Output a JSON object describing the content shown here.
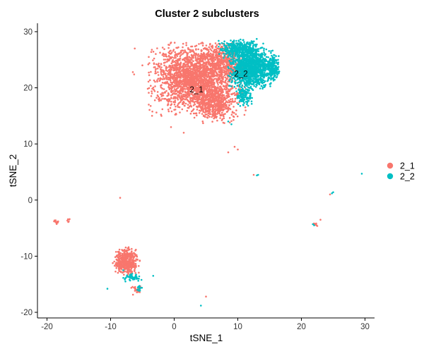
{
  "chart_data": {
    "type": "scatter",
    "title": "Cluster 2  subclusters",
    "xlabel": "tSNE_1",
    "ylabel": "tSNE_2",
    "xlim": [
      -21.5,
      31.5
    ],
    "ylim": [
      -21,
      31.5
    ],
    "x_ticks": [
      -20,
      -10,
      0,
      10,
      20,
      30
    ],
    "y_ticks": [
      -20,
      -10,
      0,
      10,
      20,
      30
    ],
    "grid": false,
    "legend": "right",
    "series": [
      {
        "name": "2_1",
        "color": "#F8766D",
        "groups": [
          {
            "kind": "ellipse",
            "center": [
              3.5,
              21.5
            ],
            "spread": [
              6.5,
              5.5
            ],
            "rotation": 0,
            "n": 2300
          },
          {
            "kind": "ellipse",
            "center": [
              6.5,
              17.0
            ],
            "spread": [
              3.0,
              2.8
            ],
            "rotation": 0,
            "n": 400
          },
          {
            "kind": "ellipse",
            "center": [
              7.5,
              25.0
            ],
            "spread": [
              3.5,
              2.5
            ],
            "rotation": 0,
            "n": 400
          },
          {
            "kind": "ellipse",
            "center": [
              -7.5,
              -11.0
            ],
            "spread": [
              1.8,
              2.3
            ],
            "rotation": 0,
            "n": 420
          },
          {
            "kind": "ellipse",
            "center": [
              -6.0,
              -16.0
            ],
            "spread": [
              0.8,
              0.8
            ],
            "rotation": 0,
            "n": 30
          },
          {
            "kind": "ellipse",
            "center": [
              -18.5,
              -3.8
            ],
            "spread": [
              0.4,
              0.4
            ],
            "rotation": 0,
            "n": 14
          },
          {
            "kind": "ellipse",
            "center": [
              -16.5,
              -3.6
            ],
            "spread": [
              0.3,
              0.3
            ],
            "rotation": 0,
            "n": 6
          },
          {
            "kind": "ellipse",
            "center": [
              22.3,
              -4.3
            ],
            "spread": [
              0.4,
              0.3
            ],
            "rotation": 0,
            "n": 10
          }
        ],
        "points": [
          [
            -6.2,
            27.0
          ],
          [
            -6.5,
            22.8
          ],
          [
            -6.3,
            22.4
          ],
          [
            -3.5,
            19.0
          ],
          [
            -8.5,
            0.4
          ],
          [
            5.0,
            -17.2
          ],
          [
            -0.5,
            13.0
          ],
          [
            1.5,
            12.0
          ],
          [
            9.5,
            9.5
          ],
          [
            8.5,
            8.5
          ],
          [
            10.0,
            9.0
          ],
          [
            -5.0,
            24.0
          ],
          [
            -4.0,
            25.5
          ],
          [
            -4.0,
            17.0
          ],
          [
            -2.0,
            15.0
          ],
          [
            23.0,
            -3.5
          ],
          [
            12.5,
            4.5
          ],
          [
            24.5,
            1.0
          ]
        ]
      },
      {
        "name": "2_2",
        "color": "#00BFC4",
        "groups": [
          {
            "kind": "ellipse",
            "center": [
              12.0,
              23.5
            ],
            "spread": [
              3.0,
              3.2
            ],
            "rotation": 0,
            "n": 1250
          },
          {
            "kind": "ellipse",
            "center": [
              10.5,
              27.0
            ],
            "spread": [
              3.0,
              1.5
            ],
            "rotation": 0,
            "n": 350
          },
          {
            "kind": "ellipse",
            "center": [
              15.5,
              23.5
            ],
            "spread": [
              1.0,
              2.0
            ],
            "rotation": 0,
            "n": 200
          },
          {
            "kind": "ellipse",
            "center": [
              11.0,
              18.5
            ],
            "spread": [
              1.2,
              1.6
            ],
            "rotation": 0,
            "n": 120
          },
          {
            "kind": "ellipse",
            "center": [
              -6.5,
              -13.8
            ],
            "spread": [
              1.5,
              0.7
            ],
            "rotation": 0,
            "n": 45
          },
          {
            "kind": "ellipse",
            "center": [
              -5.5,
              -15.8
            ],
            "spread": [
              0.4,
              0.9
            ],
            "rotation": 0,
            "n": 12
          }
        ],
        "points": [
          [
            -10.5,
            -15.8
          ],
          [
            -3.3,
            -13.5
          ],
          [
            4.2,
            -18.8
          ],
          [
            13.0,
            4.4
          ],
          [
            13.2,
            4.5
          ],
          [
            25.0,
            1.4
          ],
          [
            24.8,
            1.2
          ],
          [
            29.5,
            4.7
          ],
          [
            22.0,
            -4.5
          ],
          [
            21.8,
            -4.3
          ],
          [
            8.5,
            14.0
          ],
          [
            9.0,
            13.5
          ],
          [
            -8.0,
            -12.5
          ]
        ]
      }
    ],
    "annotations": [
      {
        "text": "2_1",
        "x": 3.5,
        "y": 19.2
      },
      {
        "text": "2_2",
        "x": 10.5,
        "y": 22.0
      }
    ]
  }
}
